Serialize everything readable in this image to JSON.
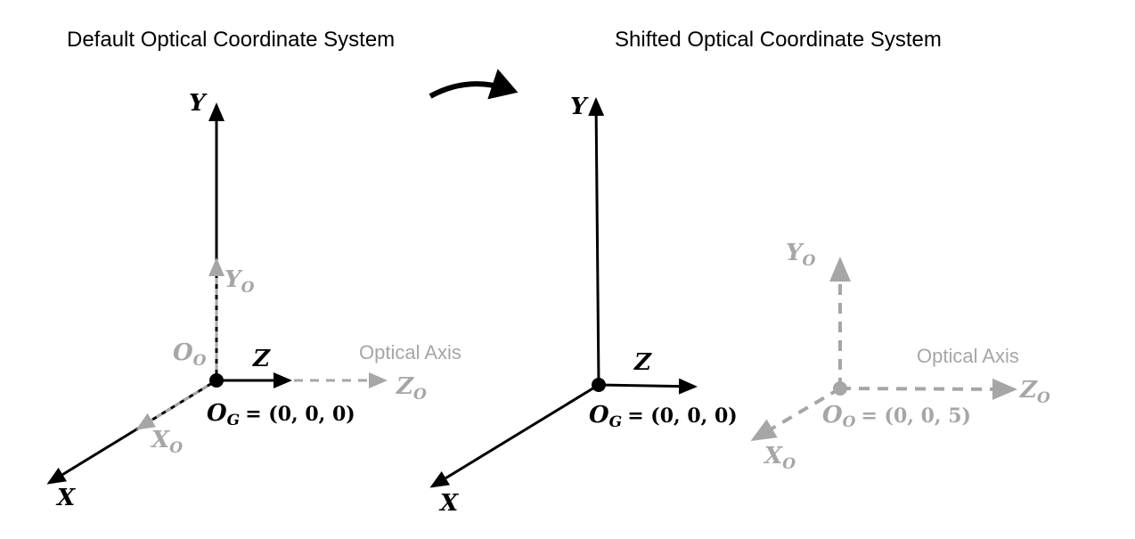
{
  "titles": {
    "left": "Default Optical Coordinate System",
    "right": "Shifted Optical Coordinate System"
  },
  "labels": {
    "Y": "Y",
    "Z": "Z",
    "X": "X",
    "O": "O",
    "sub_O": "O",
    "sub_G": "G",
    "optical_axis": "Optical Axis"
  },
  "equations": {
    "og": "= (0, 0, 0)",
    "oo": "= (0, 0, 5)"
  },
  "colors": {
    "global": "#000000",
    "optical": "#a6a6a6"
  }
}
